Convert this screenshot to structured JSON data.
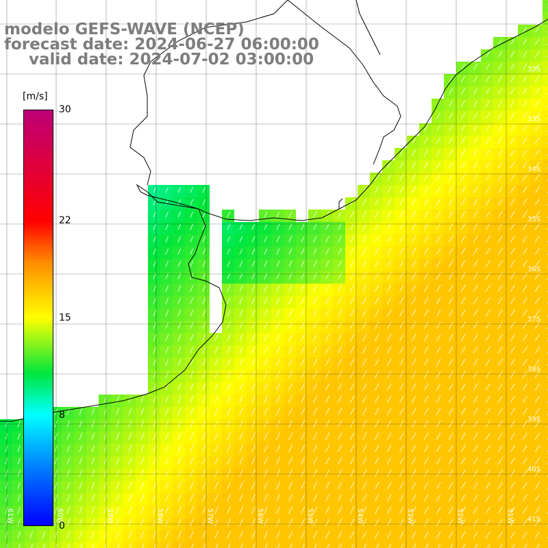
{
  "title": {
    "line1": "modelo GEFS-WAVE (NCEP)",
    "line2": "forecast date: 2024-06-27 06:00:00",
    "line3": "valid date: 2024-07-02 03:00:00"
  },
  "legend": {
    "unit": "[m/s]",
    "ticks": [
      "30",
      "22",
      "15",
      "8",
      "0"
    ],
    "tick_values": [
      30,
      22,
      15,
      8,
      0
    ],
    "min": 0,
    "max": 30
  },
  "latitude_labels": [
    "32S",
    "33S",
    "34S",
    "35S",
    "36S",
    "37S",
    "38S",
    "39S",
    "40S",
    "41S"
  ],
  "longitude_labels": [
    "61W",
    "60W",
    "59W",
    "58W",
    "57W",
    "56W",
    "55W",
    "54W",
    "53W",
    "52W",
    "51W"
  ],
  "colors": {
    "land": "#ffffff",
    "coastline": "#000000",
    "grid": "#000000",
    "arrows": "#ffffff",
    "title": "#7d7d7d"
  }
}
